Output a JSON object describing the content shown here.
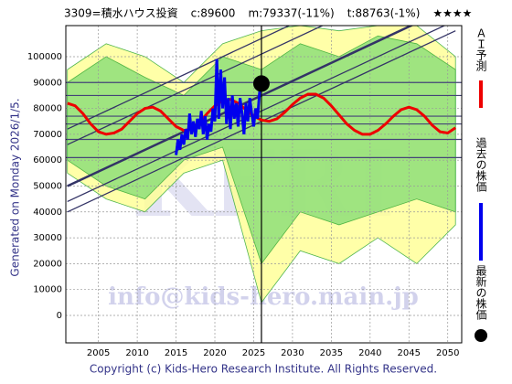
{
  "chart_data": {
    "type": "line",
    "title_parts": [
      "3309=積水ハウス投資",
      "c:89600",
      "m:79337(-11%)",
      "t:88763(-1%)",
      "★★★★"
    ],
    "generated": "Generated on Monday 2026/1/5.",
    "copyright": "Copyright (c) Kids-Hero Research Institute. All Rights Reserved.",
    "watermarks": [
      "info@kids-hero.main.jp",
      "KFRI"
    ],
    "xlim": [
      2000.8,
      2051.8
    ],
    "xticks": [
      2005,
      2010,
      2015,
      2020,
      2025,
      2030,
      2035,
      2040,
      2045,
      2050
    ],
    "ylim": [
      -10600,
      112000
    ],
    "yticks": [
      0,
      10000,
      20000,
      30000,
      40000,
      50000,
      60000,
      70000,
      80000,
      90000,
      100000
    ],
    "grid": true,
    "series": [
      {
        "name": "ＡＩ予測",
        "color": "#ee0000",
        "x": [
          2001,
          2002,
          2003,
          2004,
          2005,
          2006,
          2007,
          2008,
          2009,
          2010,
          2011,
          2012,
          2013,
          2014,
          2015,
          2016,
          2017,
          2018,
          2019,
          2020,
          2021,
          2022,
          2023,
          2024,
          2025,
          2026,
          2027,
          2028,
          2029,
          2030,
          2031,
          2032,
          2033,
          2034,
          2035,
          2036,
          2037,
          2038,
          2039,
          2040,
          2041,
          2042,
          2043,
          2044,
          2045,
          2046,
          2047,
          2048,
          2049,
          2050,
          2051
        ],
        "values": [
          82000,
          81000,
          78000,
          74000,
          71000,
          70000,
          70500,
          72000,
          75000,
          78000,
          80000,
          80500,
          79000,
          76000,
          73000,
          71500,
          72000,
          74500,
          78000,
          81000,
          83000,
          83500,
          82000,
          79500,
          77000,
          75500,
          75000,
          76000,
          78500,
          81500,
          84000,
          85500,
          85500,
          84000,
          81000,
          77500,
          74000,
          71500,
          70000,
          70000,
          71500,
          74000,
          77000,
          79500,
          80500,
          79500,
          77000,
          73500,
          71000,
          70500,
          72500
        ]
      },
      {
        "name": "過去の株価",
        "color": "#0000ee",
        "x": [
          2015,
          2015.25,
          2015.5,
          2015.75,
          2016,
          2016.25,
          2016.5,
          2016.75,
          2017,
          2017.25,
          2017.5,
          2017.75,
          2018,
          2018.25,
          2018.5,
          2018.75,
          2019,
          2019.25,
          2019.5,
          2019.75,
          2020,
          2020.25,
          2020.5,
          2020.75,
          2021,
          2021.25,
          2021.5,
          2021.75,
          2022,
          2022.25,
          2022.5,
          2022.75,
          2023,
          2023.25,
          2023.5,
          2023.75,
          2024,
          2024.25,
          2024.5,
          2024.75,
          2025,
          2025.25,
          2025.5,
          2025.75,
          2026
        ],
        "values": [
          62000,
          68000,
          64000,
          70000,
          66000,
          72000,
          68000,
          78000,
          70000,
          75000,
          69000,
          76000,
          72000,
          79000,
          70000,
          77000,
          68000,
          74000,
          71000,
          80000,
          75000,
          99000,
          76000,
          95000,
          80000,
          92000,
          74000,
          84000,
          72000,
          85000,
          76000,
          82000,
          73000,
          84000,
          78000,
          70000,
          82000,
          75000,
          84000,
          78000,
          73000,
          80000,
          76000,
          86000,
          89600
        ]
      },
      {
        "name": "最新の株価",
        "color": "#000000",
        "x": [
          2026
        ],
        "values": [
          89600
        ]
      }
    ],
    "trend_lines": [
      {
        "x": [
          2001,
          2051
        ],
        "values": [
          40000,
          110000
        ]
      },
      {
        "x": [
          2001,
          2051
        ],
        "values": [
          44000,
          114000
        ]
      },
      {
        "x": [
          2001,
          2051
        ],
        "values": [
          50000,
          120000
        ]
      },
      {
        "x": [
          2001,
          2051
        ],
        "values": [
          66000,
          136000
        ]
      },
      {
        "x": [
          2001,
          2051
        ],
        "values": [
          72000,
          142000
        ]
      }
    ],
    "levels": [
      61000,
      68000,
      74000,
      77000,
      85000,
      90000
    ],
    "bands": [
      {
        "color": "#ffff99",
        "x": [
          2001,
          2006,
          2011,
          2016,
          2021,
          2026,
          2031,
          2036,
          2041,
          2046,
          2051
        ],
        "upper": [
          95000,
          105000,
          100000,
          90000,
          105000,
          110000,
          112000,
          110000,
          112000,
          112000,
          100000
        ],
        "lower": [
          55000,
          45000,
          40000,
          55000,
          60000,
          5000,
          25000,
          20000,
          30000,
          20000,
          35000
        ]
      },
      {
        "color": "#8fe07a",
        "x": [
          2001,
          2006,
          2011,
          2016,
          2021,
          2026,
          2031,
          2036,
          2041,
          2046,
          2051
        ],
        "upper": [
          90000,
          100000,
          92000,
          85000,
          100000,
          95000,
          105000,
          100000,
          108000,
          105000,
          95000
        ],
        "lower": [
          60000,
          50000,
          45000,
          60000,
          65000,
          20000,
          40000,
          35000,
          40000,
          45000,
          40000
        ]
      }
    ]
  }
}
